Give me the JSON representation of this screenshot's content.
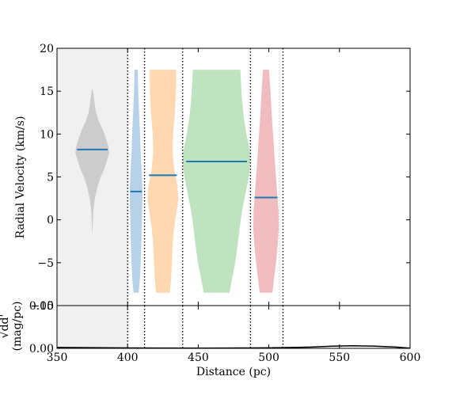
{
  "chart_data": [
    {
      "type": "violin",
      "title": "",
      "xlabel": "",
      "ylabel": "Radial Velocity (km/s)",
      "xlim": [
        350,
        600
      ],
      "ylim": [
        -10,
        20
      ],
      "yticks": [
        "20",
        "15",
        "10",
        "5",
        "0",
        "−5"
      ],
      "grid": false,
      "shaded_range": [
        350,
        400
      ],
      "boundaries": [
        400,
        412,
        439,
        487,
        510
      ],
      "median_color": "#1f77b4",
      "violins": [
        {
          "center": 375,
          "half_width": 12,
          "median": 8.2,
          "min": -1.5,
          "max": 15.2,
          "color": "#cccccc",
          "profile": [
            [
              -1.5,
              0.01
            ],
            [
              -0.5,
              0.03
            ],
            [
              1,
              0.06
            ],
            [
              2.5,
              0.15
            ],
            [
              4,
              0.33
            ],
            [
              5,
              0.5
            ],
            [
              6,
              0.72
            ],
            [
              7,
              0.88
            ],
            [
              7.8,
              1.0
            ],
            [
              8.6,
              0.95
            ],
            [
              9.5,
              0.8
            ],
            [
              10.5,
              0.62
            ],
            [
              11.5,
              0.38
            ],
            [
              12.5,
              0.22
            ],
            [
              13.5,
              0.14
            ],
            [
              14.5,
              0.08
            ],
            [
              15.2,
              0.03
            ]
          ]
        },
        {
          "center": 406,
          "half_width": 4.5,
          "median": 3.3,
          "min": -8.5,
          "max": 17.5,
          "color": "#b7d2e8",
          "profile": [
            [
              -8.5,
              0.4
            ],
            [
              -7,
              0.58
            ],
            [
              -5,
              0.72
            ],
            [
              -2,
              0.85
            ],
            [
              1,
              0.95
            ],
            [
              3,
              1.0
            ],
            [
              5,
              0.92
            ],
            [
              7,
              0.78
            ],
            [
              8.5,
              0.68
            ],
            [
              10,
              0.62
            ],
            [
              12,
              0.5
            ],
            [
              14,
              0.38
            ],
            [
              16,
              0.3
            ],
            [
              17.5,
              0.28
            ]
          ]
        },
        {
          "center": 425,
          "half_width": 11,
          "median": 5.2,
          "min": -8.5,
          "max": 17.5,
          "color": "#ffd8b2",
          "profile": [
            [
              -8.5,
              0.45
            ],
            [
              -7,
              0.52
            ],
            [
              -5,
              0.58
            ],
            [
              -3,
              0.62
            ],
            [
              -1,
              0.72
            ],
            [
              1,
              0.88
            ],
            [
              2.5,
              1.0
            ],
            [
              4,
              0.92
            ],
            [
              6,
              0.72
            ],
            [
              8,
              0.62
            ],
            [
              10,
              0.65
            ],
            [
              12,
              0.75
            ],
            [
              14,
              0.82
            ],
            [
              16,
              0.85
            ],
            [
              17.5,
              0.85
            ]
          ]
        },
        {
          "center": 463,
          "half_width": 24,
          "median": 6.8,
          "min": -8.5,
          "max": 17.5,
          "color": "#bfe2bf",
          "profile": [
            [
              -8.5,
              0.38
            ],
            [
              -7,
              0.45
            ],
            [
              -5,
              0.55
            ],
            [
              -3,
              0.62
            ],
            [
              -1,
              0.68
            ],
            [
              1,
              0.75
            ],
            [
              3,
              0.85
            ],
            [
              5,
              0.95
            ],
            [
              6.8,
              1.0
            ],
            [
              8,
              0.98
            ],
            [
              10,
              0.88
            ],
            [
              12,
              0.8
            ],
            [
              14,
              0.75
            ],
            [
              16,
              0.72
            ],
            [
              17.5,
              0.7
            ]
          ]
        },
        {
          "center": 498,
          "half_width": 9,
          "median": 2.6,
          "min": -8.5,
          "max": 17.5,
          "color": "#f1bcc0",
          "profile": [
            [
              -8.5,
              0.5
            ],
            [
              -7,
              0.62
            ],
            [
              -5,
              0.78
            ],
            [
              -3,
              0.92
            ],
            [
              -1,
              1.0
            ],
            [
              1,
              0.98
            ],
            [
              3,
              0.88
            ],
            [
              5,
              0.78
            ],
            [
              7,
              0.68
            ],
            [
              9,
              0.6
            ],
            [
              11,
              0.5
            ],
            [
              13,
              0.42
            ],
            [
              15,
              0.35
            ],
            [
              16.5,
              0.28
            ],
            [
              17.5,
              0.25
            ]
          ]
        }
      ]
    },
    {
      "type": "line",
      "title": "",
      "xlabel": "Distance (pc)",
      "ylabel": "(mag/pc)",
      "ylabel_top": "√dd'",
      "xlim": [
        350,
        600
      ],
      "ylim": [
        0,
        0.05
      ],
      "xticks": [
        "350",
        "400",
        "450",
        "500",
        "550",
        "600"
      ],
      "yticks": [
        "0.05",
        "0.00"
      ],
      "yticks_overlap_note": "−10",
      "shaded_range": [
        350,
        400
      ],
      "boundaries": [
        400,
        412,
        439,
        487,
        510
      ],
      "series": [
        {
          "x": [
            350,
            400,
            450,
            500,
            530,
            545,
            560,
            575,
            590,
            600
          ],
          "y": [
            0.001,
            0.0005,
            0.0003,
            0.0006,
            0.0015,
            0.0025,
            0.003,
            0.0025,
            0.0015,
            0.0002
          ]
        }
      ]
    }
  ]
}
